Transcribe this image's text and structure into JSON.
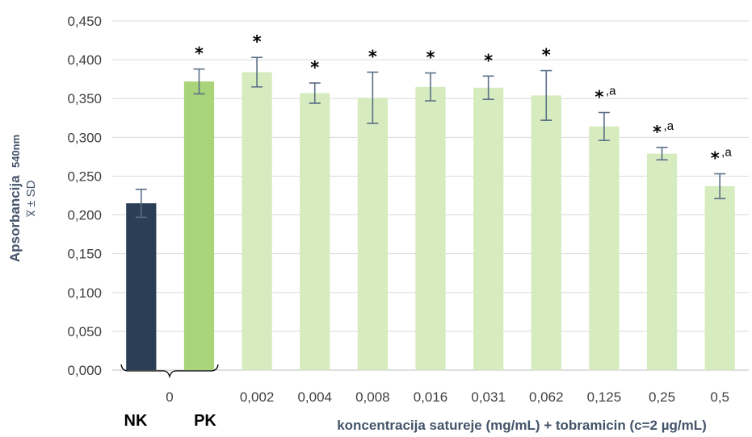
{
  "chart_data": {
    "type": "bar",
    "ylabel": "Apsorbancija",
    "ylabel_sub": "540nm",
    "ylabel_line2": "x̅ ± SD",
    "xlabel": "koncentracija satureje (mg/mL) + tobramicin (c=2 µg/mL)",
    "ylim": [
      0,
      0.45
    ],
    "yticks": [
      "0,000",
      "0,050",
      "0,100",
      "0,150",
      "0,200",
      "0,250",
      "0,300",
      "0,350",
      "0,400",
      "0,450"
    ],
    "grid": true,
    "group_tick_label": "0",
    "group_labels": [
      "NK",
      "PK"
    ],
    "categories": [
      "NK",
      "PK",
      "0,002",
      "0,004",
      "0,008",
      "0,016",
      "0,031",
      "0,062",
      "0,125",
      "0,25",
      "0,5"
    ],
    "bars": [
      {
        "label": "",
        "value": 0.215,
        "err": 0.018,
        "color": "#2a3f55",
        "mark": ""
      },
      {
        "label": "",
        "value": 0.372,
        "err": 0.016,
        "color": "#a9d479",
        "mark": "*"
      },
      {
        "label": "0,002",
        "value": 0.384,
        "err": 0.019,
        "color": "#d6ebbe",
        "mark": "*"
      },
      {
        "label": "0,004",
        "value": 0.357,
        "err": 0.013,
        "color": "#d6ebbe",
        "mark": "*"
      },
      {
        "label": "0,008",
        "value": 0.351,
        "err": 0.033,
        "color": "#d6ebbe",
        "mark": "*"
      },
      {
        "label": "0,016",
        "value": 0.365,
        "err": 0.018,
        "color": "#d6ebbe",
        "mark": "*"
      },
      {
        "label": "0,031",
        "value": 0.364,
        "err": 0.015,
        "color": "#d6ebbe",
        "mark": "*"
      },
      {
        "label": "0,062",
        "value": 0.354,
        "err": 0.032,
        "color": "#d6ebbe",
        "mark": "*"
      },
      {
        "label": "0,125",
        "value": 0.314,
        "err": 0.018,
        "color": "#d6ebbe",
        "mark": "*",
        "sup": ",a"
      },
      {
        "label": "0,25",
        "value": 0.279,
        "err": 0.008,
        "color": "#d6ebbe",
        "mark": "*",
        "sup": ",a"
      },
      {
        "label": "0,5",
        "value": 0.237,
        "err": 0.016,
        "color": "#d6ebbe",
        "mark": "*",
        "sup": ",a"
      }
    ]
  }
}
